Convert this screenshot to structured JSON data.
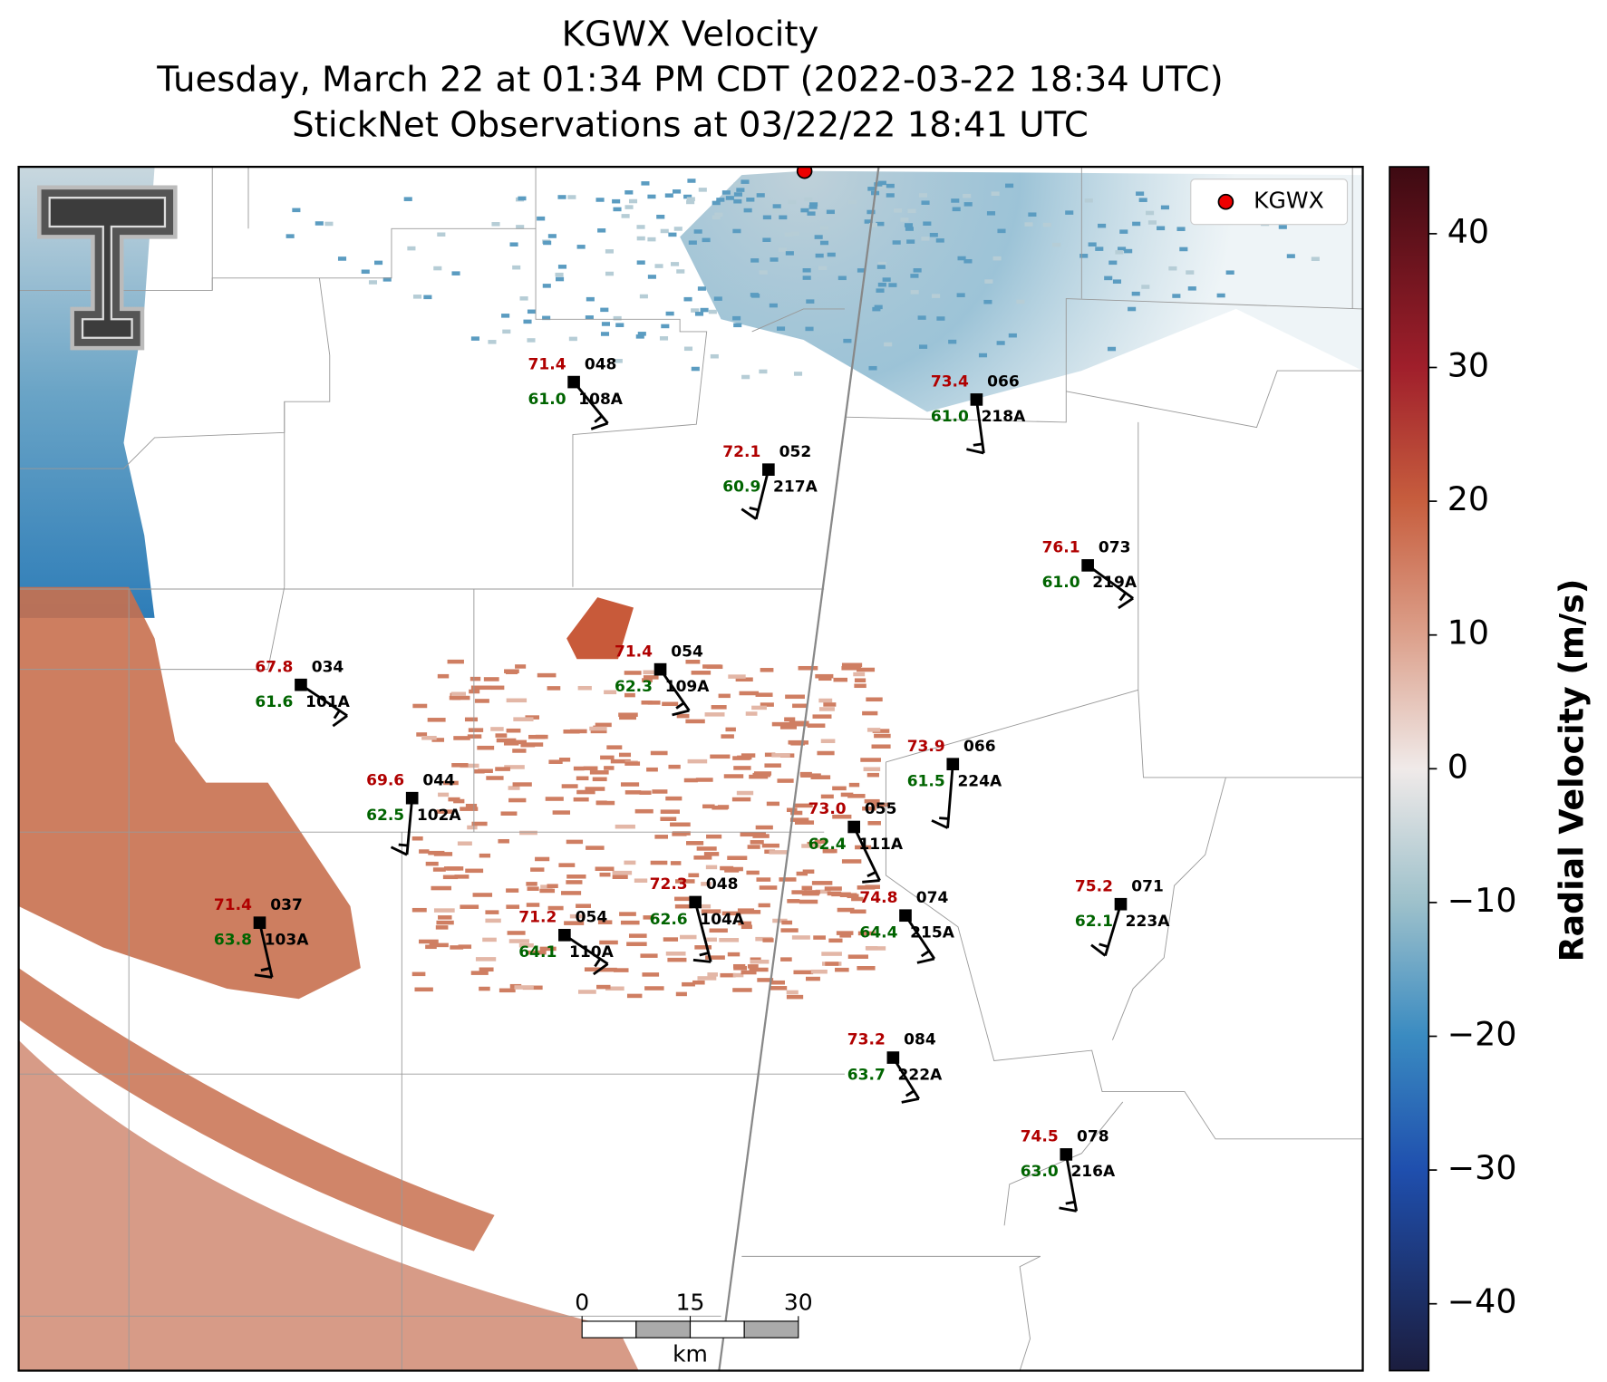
{
  "title": [
    "KGWX Velocity",
    "Tuesday, March 22 at 01:34 PM CDT (2022-03-22 18:34 UTC)",
    "StickNet Observations at 03/22/22 18:41 UTC"
  ],
  "legend": {
    "label": "KGWX"
  },
  "colorbar": {
    "label": "Radial Velocity (m/s)",
    "ylim": [
      -45,
      45
    ],
    "yticks": [
      {
        "value": -40,
        "label": "−40"
      },
      {
        "value": -30,
        "label": "−30"
      },
      {
        "value": -20,
        "label": "−20"
      },
      {
        "value": -10,
        "label": "−10"
      },
      0,
      10,
      20,
      30,
      40
    ]
  },
  "scalebar": {
    "ticks": [
      0,
      15,
      30
    ],
    "unit": "km"
  },
  "stations": [
    {
      "id": "108A",
      "temp": "71.4",
      "dew": "61.0",
      "dir": "048"
    },
    {
      "id": "217A",
      "temp": "72.1",
      "dew": "60.9",
      "dir": "052"
    },
    {
      "id": "218A",
      "temp": "73.4",
      "dew": "61.0",
      "dir": "066"
    },
    {
      "id": "219A",
      "temp": "76.1",
      "dew": "61.0",
      "dir": "073"
    },
    {
      "id": "101A",
      "temp": "67.8",
      "dew": "61.6",
      "dir": "034"
    },
    {
      "id": "109A",
      "temp": "71.4",
      "dew": "62.3",
      "dir": "054"
    },
    {
      "id": "224A",
      "temp": "73.9",
      "dew": "61.5",
      "dir": "066"
    },
    {
      "id": "102A",
      "temp": "69.6",
      "dew": "62.5",
      "dir": "044"
    },
    {
      "id": "111A",
      "temp": "73.0",
      "dew": "62.4",
      "dir": "055"
    },
    {
      "id": "104A",
      "temp": "72.3",
      "dew": "62.6",
      "dir": "048"
    },
    {
      "id": "215A",
      "temp": "74.8",
      "dew": "64.4",
      "dir": "074"
    },
    {
      "id": "223A",
      "temp": "75.2",
      "dew": "62.1",
      "dir": "071"
    },
    {
      "id": "103A",
      "temp": "71.4",
      "dew": "63.8",
      "dir": "037"
    },
    {
      "id": "110A",
      "temp": "71.2",
      "dew": "64.1",
      "dir": "054"
    },
    {
      "id": "222A",
      "temp": "73.2",
      "dew": "63.7",
      "dir": "084"
    },
    {
      "id": "216A",
      "temp": "74.5",
      "dew": "63.0",
      "dir": "078"
    }
  ]
}
